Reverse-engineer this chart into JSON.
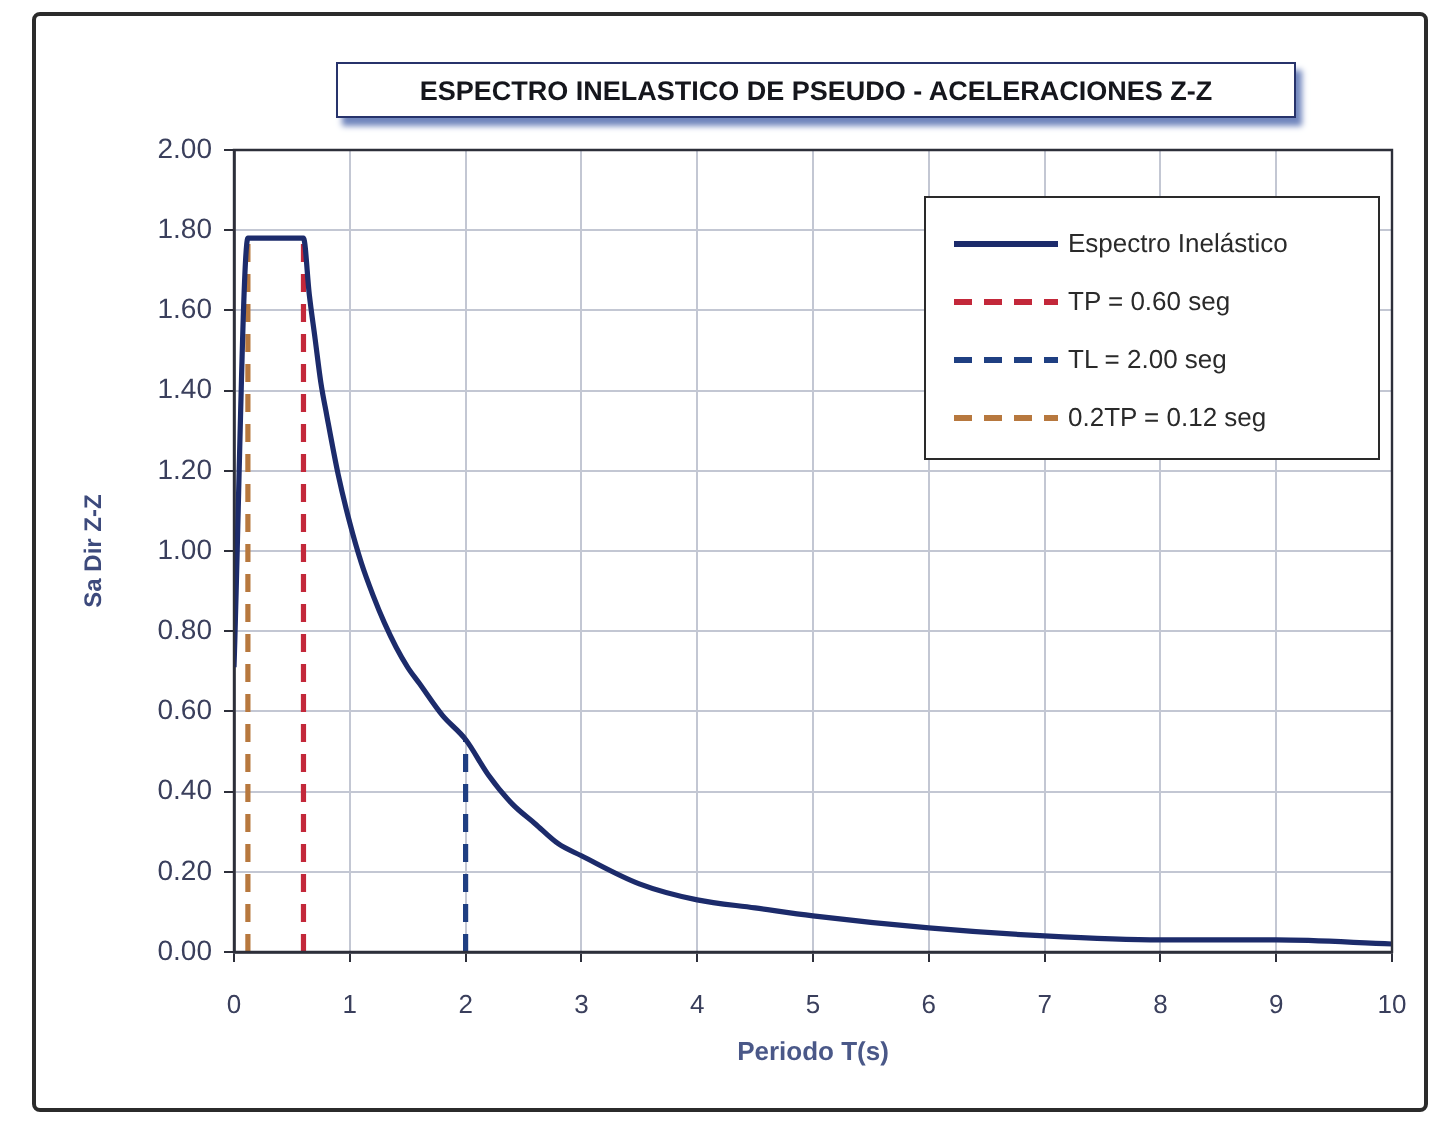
{
  "chart_data": {
    "type": "line",
    "title": "ESPECTRO INELASTICO DE PSEUDO - ACELERACIONES Z-Z",
    "xlabel": "Periodo T(s)",
    "ylabel": "Sa Dir Z-Z",
    "xlim": [
      0,
      10
    ],
    "xticks": [
      0,
      1,
      2,
      3,
      4,
      5,
      6,
      7,
      8,
      9,
      10
    ],
    "ylim": [
      0,
      2
    ],
    "yticks": [
      {
        "value": 0,
        "label": "0.00"
      },
      {
        "value": 0.2,
        "label": "0.20"
      },
      {
        "value": 0.4,
        "label": "0.40"
      },
      {
        "value": 0.6,
        "label": "0.60"
      },
      {
        "value": 0.8,
        "label": "0.80"
      },
      {
        "value": 1,
        "label": "1.00"
      },
      {
        "value": 1.2,
        "label": "1.20"
      },
      {
        "value": 1.4,
        "label": "1.40"
      },
      {
        "value": 1.6,
        "label": "1.60"
      },
      {
        "value": 1.8,
        "label": "1.80"
      },
      {
        "value": 2,
        "label": "2.00"
      }
    ],
    "grid": true,
    "legend": "top right",
    "series": [
      {
        "name": "Espectro Inelástico",
        "color": "#1c2b6b",
        "line_style": "solid",
        "x": [
          0,
          0.12,
          0.6,
          0.65,
          0.7,
          0.75,
          0.8,
          0.9,
          1,
          1.1,
          1.2,
          1.3,
          1.4,
          1.5,
          1.6,
          1.8,
          2,
          2.2,
          2.4,
          2.6,
          2.8,
          3,
          3.5,
          4,
          4.5,
          5,
          6,
          7,
          8,
          9,
          10
        ],
        "values": [
          0.71,
          1.78,
          1.78,
          1.64,
          1.53,
          1.42,
          1.34,
          1.19,
          1.07,
          0.97,
          0.89,
          0.82,
          0.76,
          0.71,
          0.67,
          0.59,
          0.53,
          0.44,
          0.37,
          0.32,
          0.27,
          0.24,
          0.17,
          0.13,
          0.11,
          0.09,
          0.06,
          0.04,
          0.03,
          0.03,
          0.02
        ]
      },
      {
        "name": "TP = 0.60 seg",
        "color": "#c3283a",
        "line_style": "dashed",
        "x": [
          0.6,
          0.6
        ],
        "values": [
          0,
          1.78
        ]
      },
      {
        "name": "TL = 2.00 seg",
        "color": "#1f3f82",
        "line_style": "dashed",
        "x": [
          2,
          2
        ],
        "values": [
          0,
          0.53
        ]
      },
      {
        "name": "0.2TP = 0.12 seg",
        "color": "#b7783e",
        "line_style": "dashed",
        "x": [
          0.12,
          0.12
        ],
        "values": [
          0,
          1.78
        ]
      }
    ]
  }
}
